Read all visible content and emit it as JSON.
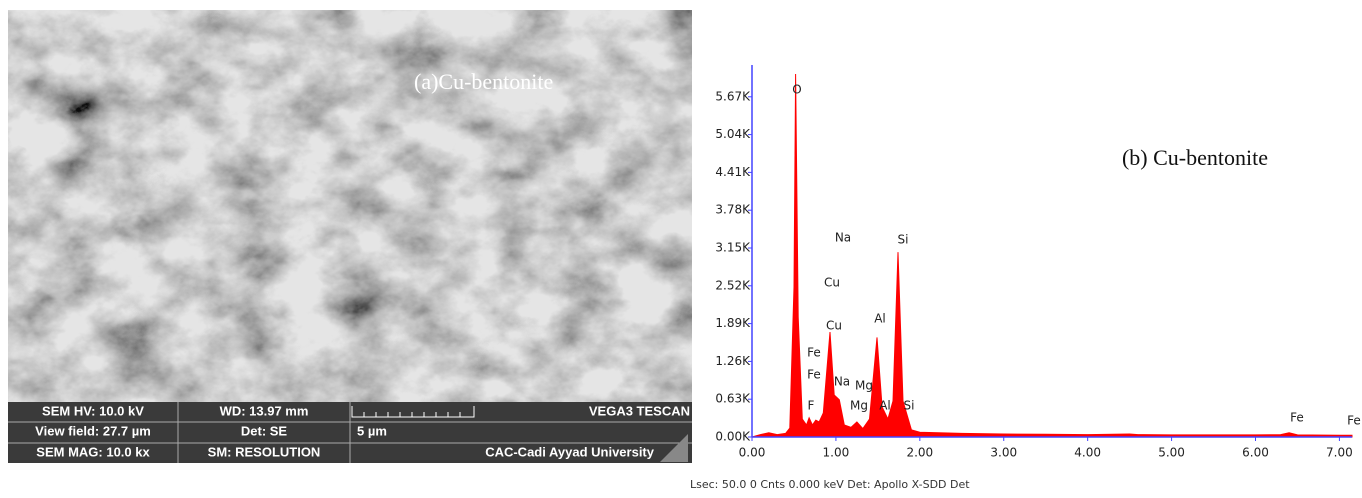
{
  "sem_image": {
    "label": "(a)Cu-bentonite",
    "info": [
      [
        "SEM HV: 10.0 kV",
        "WD: 13.97 mm",
        "VEGA3 TESCAN"
      ],
      [
        "View field: 27.7 µm",
        "Det: SE",
        "5 µm"
      ],
      [
        "SEM MAG: 10.0 kx",
        "SM: RESOLUTION",
        "CAC-Cadi Ayyad University"
      ]
    ]
  },
  "chart_data": {
    "type": "area",
    "title": "(b) Cu-bentonite",
    "color": "#ff0000",
    "x": [
      0,
      0.1,
      0.2,
      0.3,
      0.4,
      0.45,
      0.5,
      0.52,
      0.55,
      0.6,
      0.65,
      0.68,
      0.72,
      0.76,
      0.8,
      0.85,
      0.93,
      0.98,
      1.04,
      1.1,
      1.18,
      1.25,
      1.32,
      1.4,
      1.49,
      1.55,
      1.62,
      1.68,
      1.74,
      1.8,
      1.9,
      2.0,
      2.5,
      3.0,
      3.5,
      4.0,
      4.5,
      4.6,
      5.0,
      5.5,
      6.0,
      6.3,
      6.4,
      6.5,
      7.0,
      7.15
    ],
    "values": [
      0,
      40,
      70,
      40,
      60,
      150,
      2500,
      6050,
      2000,
      300,
      200,
      320,
      200,
      280,
      250,
      400,
      1750,
      700,
      620,
      200,
      160,
      250,
      140,
      300,
      1660,
      500,
      300,
      600,
      3080,
      600,
      120,
      80,
      60,
      50,
      45,
      40,
      50,
      40,
      35,
      35,
      35,
      40,
      70,
      35,
      30,
      30
    ],
    "xlim": [
      0,
      7.15
    ],
    "ylim": [
      0,
      6200
    ],
    "xticks": [
      {
        "value": 0,
        "label": "0.00"
      },
      {
        "value": 1,
        "label": "1.00"
      },
      {
        "value": 2,
        "label": "2.00"
      },
      {
        "value": 3,
        "label": "3.00"
      },
      {
        "value": 4,
        "label": "4.00"
      },
      {
        "value": 5,
        "label": "5.00"
      },
      {
        "value": 6,
        "label": "6.00"
      },
      {
        "value": 7,
        "label": "7.00"
      }
    ],
    "yticks": [
      {
        "value": 0,
        "label": "0.00K"
      },
      {
        "value": 630,
        "label": "0.63K"
      },
      {
        "value": 1260,
        "label": "1.26K"
      },
      {
        "value": 1890,
        "label": "1.89K"
      },
      {
        "value": 2520,
        "label": "2.52K"
      },
      {
        "value": 3150,
        "label": "3.15K"
      },
      {
        "value": 3780,
        "label": "3.78K"
      },
      {
        "value": 4410,
        "label": "4.41K"
      },
      {
        "value": 5040,
        "label": "5.04K"
      },
      {
        "value": 5670,
        "label": "5.67K"
      }
    ],
    "annotations": [
      "O",
      "Na",
      "Si",
      "Cu",
      "Al",
      "Cu",
      "Fe",
      "Fe",
      "Na",
      "Mg",
      "F",
      "Mg",
      "Al",
      "Si",
      "Fe",
      "Fe"
    ],
    "footer": "Lsec: 50.0 0 Cnts 0.000 keV Det: Apollo X-SDD Det"
  }
}
